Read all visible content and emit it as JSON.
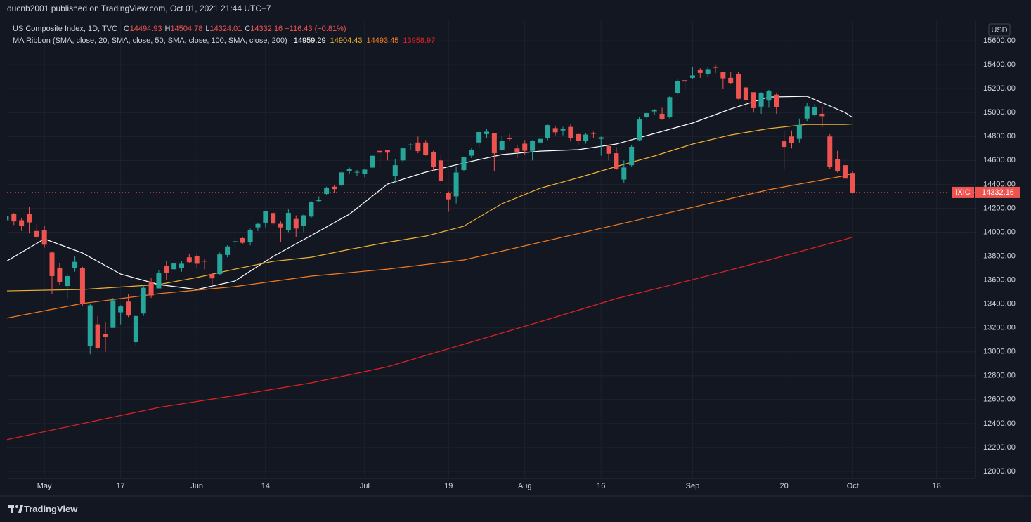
{
  "header": {
    "text": "ducnb2001 published on TradingView.com, Oct 01, 2021 21:44 UTC+7"
  },
  "footer": {
    "brand": "TradingView"
  },
  "chart_data": {
    "type": "candlestick",
    "title": "US Composite Index, 1D, TVC",
    "symbol": "IXIC",
    "currency": "USD",
    "ohlc_labels": [
      "O",
      "H",
      "L",
      "C"
    ],
    "change": {
      "value": -116.43,
      "label": "−116.43"
    },
    "change_pct": {
      "value": -0.81,
      "label": "(−0.81%)"
    },
    "up_color": "#26a69a",
    "down_color": "#ef5350",
    "grid": true,
    "x": [
      0,
      1,
      2,
      3,
      4,
      5,
      6,
      7,
      8,
      9,
      10,
      11,
      12,
      13,
      14,
      15,
      16,
      17,
      18,
      19,
      20,
      21,
      22,
      23,
      24,
      25,
      26,
      27,
      28,
      29,
      30,
      31,
      32,
      33,
      34,
      35,
      36,
      37,
      38,
      39,
      40,
      41,
      42,
      43,
      44,
      45,
      46,
      47,
      48,
      49,
      50,
      51,
      52,
      53,
      54,
      55,
      56,
      57,
      58,
      59,
      60,
      61,
      62,
      63,
      64,
      65,
      66,
      67,
      68,
      69,
      70,
      71,
      72,
      73,
      74,
      75,
      76,
      77,
      78,
      79,
      80,
      81,
      82,
      83,
      84,
      85,
      86,
      87,
      88,
      89,
      90,
      91,
      92,
      93,
      94,
      95,
      96,
      97,
      98,
      99,
      100,
      101,
      102,
      103,
      104,
      105,
      106,
      107,
      108,
      109,
      110,
      111
    ],
    "open": [
      14100,
      14150,
      14100,
      14150,
      14010,
      14020,
      13830,
      13700,
      13550,
      13700,
      13700,
      13050,
      13230,
      13150,
      13200,
      13330,
      13420,
      13080,
      13320,
      13580,
      13530,
      13720,
      13690,
      13700,
      13790,
      13800,
      13760,
      13650,
      13650,
      13810,
      13920,
      13950,
      13920,
      14040,
      14080,
      14160,
      14070,
      14020,
      14110,
      14050,
      14130,
      14260,
      14320,
      14380,
      14390,
      14510,
      14500,
      14490,
      14540,
      14680,
      14690,
      14470,
      14600,
      14730,
      14750,
      14750,
      14670,
      14600,
      14330,
      14300,
      14520,
      14640,
      14750,
      14820,
      14830,
      14690,
      14790,
      14700,
      14740,
      14680,
      14750,
      14790,
      14870,
      14850,
      14880,
      14820,
      14760,
      14830,
      14780,
      14720,
      14660,
      14440,
      14560,
      14770,
      14960,
      15010,
      14990,
      14960,
      15160,
      15270,
      15290,
      15360,
      15320,
      15380,
      15340,
      15290,
      15320,
      15210,
      15170,
      15050,
      15100,
      15150,
      14760,
      14800,
      14780,
      14950,
      14980,
      14990,
      14800,
      14610,
      14560,
      14494.93
    ],
    "high": [
      14150,
      14160,
      14120,
      14210,
      14070,
      14050,
      13840,
      13740,
      13650,
      13800,
      13710,
      13400,
      13300,
      13250,
      13450,
      13390,
      13480,
      13310,
      13560,
      13620,
      13680,
      13760,
      13750,
      13760,
      13820,
      13820,
      13780,
      13660,
      13830,
      13890,
      13960,
      13960,
      14030,
      14080,
      14180,
      14170,
      14090,
      14190,
      14140,
      14150,
      14260,
      14300,
      14380,
      14390,
      14510,
      14540,
      14520,
      14530,
      14640,
      14690,
      14690,
      14610,
      14710,
      14750,
      14800,
      14770,
      14680,
      14650,
      14340,
      14550,
      14630,
      14700,
      14840,
      14860,
      14830,
      14800,
      14820,
      14730,
      14770,
      14770,
      14800,
      14900,
      14890,
      14880,
      14900,
      14830,
      14830,
      14840,
      14800,
      14730,
      14710,
      14600,
      14730,
      14960,
      15010,
      15030,
      15040,
      15140,
      15280,
      15280,
      15380,
      15370,
      15380,
      15400,
      15340,
      15340,
      15340,
      15220,
      15170,
      15170,
      15190,
      15160,
      14850,
      14850,
      14950,
      15080,
      15070,
      15050,
      14820,
      14680,
      14620,
      14504.78
    ],
    "low": [
      14080,
      14060,
      14010,
      13990,
      13940,
      13870,
      13480,
      13560,
      13440,
      13670,
      13380,
      12980,
      13020,
      13000,
      13200,
      13230,
      13290,
      13050,
      13300,
      13450,
      13530,
      13600,
      13680,
      13670,
      13740,
      13700,
      13690,
      13540,
      13640,
      13790,
      13850,
      13900,
      13890,
      14010,
      14040,
      14060,
      13920,
      14000,
      13960,
      14000,
      14120,
      14250,
      14310,
      14330,
      14380,
      14490,
      14470,
      14460,
      14540,
      14550,
      14600,
      14410,
      14590,
      14690,
      14660,
      14640,
      14510,
      14420,
      14170,
      14240,
      14510,
      14620,
      14700,
      14790,
      14510,
      14680,
      14760,
      14620,
      14650,
      14600,
      14740,
      14770,
      14810,
      14810,
      14760,
      14730,
      14740,
      14790,
      14640,
      14600,
      14520,
      14410,
      14550,
      14760,
      14940,
      14980,
      14940,
      14950,
      15150,
      15190,
      15280,
      15290,
      15300,
      15330,
      15200,
      15240,
      15110,
      15010,
      15000,
      14990,
      15040,
      14990,
      14530,
      14700,
      14750,
      14930,
      14970,
      14880,
      14530,
      14500,
      14440,
      14324.01
    ],
    "close": [
      14138,
      14090,
      14051,
      14082,
      13962,
      13895,
      13633,
      13582,
      13633,
      13752,
      13402,
      13389,
      13032,
      13124,
      13430,
      13379,
      13303,
      13299,
      13535,
      13471,
      13661,
      13657,
      13738,
      13736,
      13749,
      13736,
      13756,
      13614,
      13814,
      13881,
      13924,
      13911,
      14020,
      14069,
      14174,
      14072,
      14040,
      14161,
      14030,
      14141,
      14253,
      14272,
      14370,
      14360,
      14500,
      14528,
      14504,
      14523,
      14639,
      14665,
      14665,
      14560,
      14701,
      14733,
      14678,
      14644,
      14543,
      14427,
      14275,
      14499,
      14631,
      14685,
      14837,
      14840,
      14660,
      14763,
      14778,
      14672,
      14681,
      14761,
      14780,
      14895,
      14835,
      14860,
      14788,
      14765,
      14816,
      14822,
      14793,
      14656,
      14526,
      14541,
      14714,
      14942,
      14995,
      15019,
      14946,
      15129,
      15265,
      15259,
      15310,
      15331,
      15363,
      15374,
      15286,
      15248,
      15115,
      15105,
      15037,
      15161,
      15181,
      15044,
      14713,
      14746,
      14896,
      15052,
      15047,
      14970,
      14546,
      14512,
      14448,
      14332.16
    ],
    "ma_title": "MA Ribbon (SMA, close, 20, SMA, close, 50, SMA, close, 100, SMA, close, 200)",
    "ma": [
      {
        "color": "#ffffff",
        "x": [
          0,
          5,
          10,
          15,
          20,
          25,
          30,
          35,
          40,
          45,
          50,
          55,
          60,
          65,
          70,
          75,
          80,
          85,
          90,
          95,
          100,
          105,
          110,
          111
        ],
        "values": [
          13756,
          13944,
          13826,
          13650,
          13562,
          13521,
          13592,
          13797,
          13973,
          14150,
          14402,
          14502,
          14578,
          14649,
          14678,
          14690,
          14737,
          14825,
          14913,
          15030,
          15130,
          15136,
          15001,
          14959.29
        ]
      },
      {
        "color": "#f0b131",
        "x": [
          0,
          10,
          20,
          25,
          30,
          35,
          40,
          45,
          50,
          55,
          60,
          65,
          70,
          75,
          80,
          85,
          90,
          95,
          100,
          105,
          110,
          111
        ],
        "values": [
          13509,
          13521,
          13562,
          13621,
          13691,
          13756,
          13791,
          13856,
          13915,
          13967,
          14050,
          14238,
          14367,
          14455,
          14549,
          14637,
          14737,
          14813,
          14866,
          14901,
          14901,
          14904.43
        ]
      },
      {
        "color": "#f57c1f",
        "x": [
          0,
          10,
          20,
          30,
          40,
          50,
          60,
          70,
          80,
          90,
          100,
          110,
          111
        ],
        "values": [
          13280,
          13404,
          13486,
          13545,
          13633,
          13691,
          13768,
          13915,
          14061,
          14208,
          14355,
          14473,
          14493.45
        ]
      },
      {
        "color": "#e32124",
        "x": [
          0,
          10,
          20,
          30,
          40,
          50,
          60,
          70,
          80,
          90,
          100,
          110,
          111
        ],
        "values": [
          12264,
          12400,
          12534,
          12634,
          12740,
          12875,
          13063,
          13251,
          13445,
          13603,
          13768,
          13940,
          13958.97
        ]
      }
    ],
    "xlim": [
      0.1,
      127.1
    ],
    "xticks": [
      {
        "value": 5,
        "label": "May"
      },
      {
        "value": 15,
        "label": "17"
      },
      {
        "value": 25,
        "label": "Jun"
      },
      {
        "value": 34,
        "label": "14"
      },
      {
        "value": 47,
        "label": "Jul"
      },
      {
        "value": 58,
        "label": "19"
      },
      {
        "value": 68,
        "label": "Aug"
      },
      {
        "value": 78,
        "label": "16"
      },
      {
        "value": 90,
        "label": "Sep"
      },
      {
        "value": 102,
        "label": "20"
      },
      {
        "value": 111,
        "label": "Oct"
      },
      {
        "value": 122,
        "label": "18"
      }
    ],
    "ylim": [
      11941,
      15765
    ],
    "yticks": [
      {
        "value": 12000,
        "label": "12000.00"
      },
      {
        "value": 12200,
        "label": "12200.00"
      },
      {
        "value": 12400,
        "label": "12400.00"
      },
      {
        "value": 12600,
        "label": "12600.00"
      },
      {
        "value": 12800,
        "label": "12800.00"
      },
      {
        "value": 13000,
        "label": "13000.00"
      },
      {
        "value": 13200,
        "label": "13200.00"
      },
      {
        "value": 13400,
        "label": "13400.00"
      },
      {
        "value": 13600,
        "label": "13600.00"
      },
      {
        "value": 13800,
        "label": "13800.00"
      },
      {
        "value": 14000,
        "label": "14000.00"
      },
      {
        "value": 14200,
        "label": "14200.00"
      },
      {
        "value": 14400,
        "label": "14400.00"
      },
      {
        "value": 14600,
        "label": "14600.00"
      },
      {
        "value": 14800,
        "label": "14800.00"
      },
      {
        "value": 15000,
        "label": "15000.00"
      },
      {
        "value": 15200,
        "label": "15200.00"
      },
      {
        "value": 15400,
        "label": "15400.00"
      },
      {
        "value": 15600,
        "label": "15600.00"
      }
    ]
  }
}
